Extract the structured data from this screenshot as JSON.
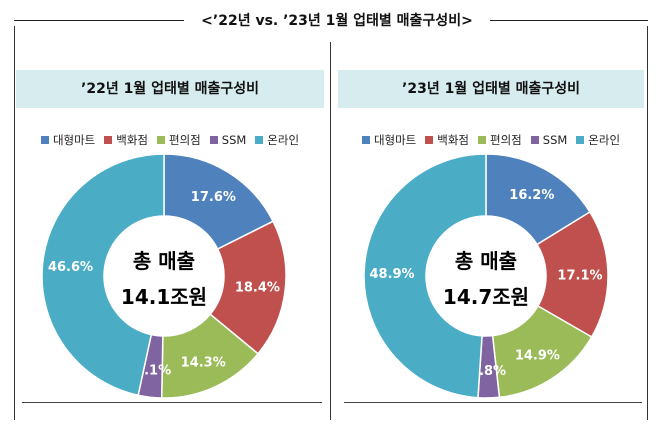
{
  "title": "<’22년 vs. ’23년 1월 업태별 매출구성비>",
  "colors": {
    "대형마트": "#4f81bd",
    "백화점": "#c0504d",
    "편의점": "#9bbb59",
    "SSM": "#8064a2",
    "온라인": "#4bacc6"
  },
  "chart_data": [
    {
      "type": "pie",
      "title": "’22년 1월 업태별 매출구성비",
      "categories": [
        "대형마트",
        "백화점",
        "편의점",
        "SSM",
        "온라인"
      ],
      "values": [
        17.6,
        18.4,
        14.3,
        3.1,
        46.6
      ],
      "value_labels": [
        "17.6%",
        "18.4%",
        "14.3%",
        "3.1%",
        "46.6%"
      ],
      "center_label": [
        "총 매출",
        "14.1조원"
      ],
      "legend_position": "top"
    },
    {
      "type": "pie",
      "title": "’23년 1월 업태별 매출구성비",
      "categories": [
        "대형마트",
        "백화점",
        "편의점",
        "SSM",
        "온라인"
      ],
      "values": [
        16.2,
        17.1,
        14.9,
        2.8,
        48.9
      ],
      "value_labels": [
        "16.2%",
        "17.1%",
        "14.9%",
        "2.8%",
        "48.9%"
      ],
      "center_label": [
        "총 매출",
        "14.7조원"
      ],
      "legend_position": "top"
    }
  ]
}
